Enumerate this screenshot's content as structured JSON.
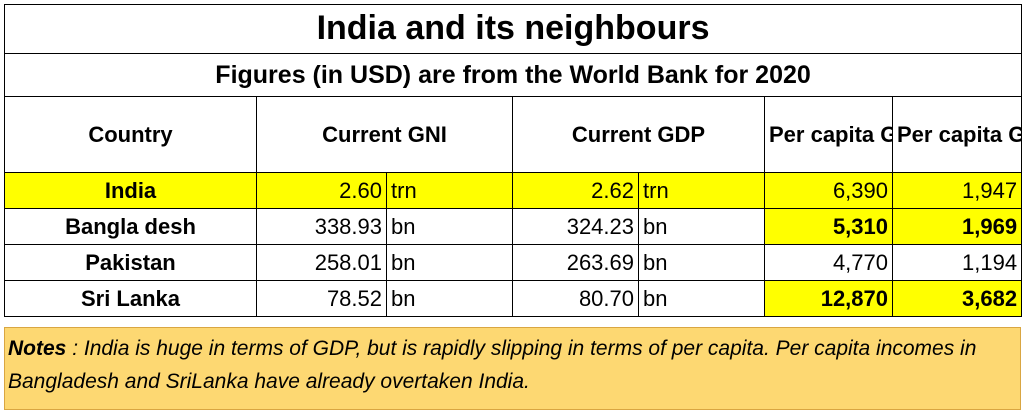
{
  "title": "India and its neighbours",
  "subtitle": "Figures (in USD) are from the World Bank for 2020",
  "headers": {
    "country": "Country",
    "current_gni": "Current GNI",
    "current_gdp": "Current GDP",
    "per_capita_gni_ppp_line1": "Per capita",
    "per_capita_gni_ppp_line2": "GNI - PPP",
    "per_capita_gdp_line1": "Per capita",
    "per_capita_gdp_line2": "GDP"
  },
  "rows": [
    {
      "country": "India",
      "gni": "2.60",
      "gni_unit": "trn",
      "gdp": "2.62",
      "gdp_unit": "trn",
      "pc_gni_ppp": "6,390",
      "pc_gdp": "1,947"
    },
    {
      "country": "Bangla desh",
      "gni": "338.93",
      "gni_unit": "bn",
      "gdp": "324.23",
      "gdp_unit": "bn",
      "pc_gni_ppp": "5,310",
      "pc_gdp": "1,969"
    },
    {
      "country": "Pakistan",
      "gni": "258.01",
      "gni_unit": "bn",
      "gdp": "263.69",
      "gdp_unit": "bn",
      "pc_gni_ppp": "4,770",
      "pc_gdp": "1,194"
    },
    {
      "country": "Sri Lanka",
      "gni": "78.52",
      "gni_unit": "bn",
      "gdp": "80.70",
      "gdp_unit": "bn",
      "pc_gni_ppp": "12,870",
      "pc_gdp": "3,682"
    }
  ],
  "notes": {
    "label": "Notes",
    "text": " : India is huge in terms of GDP, but is rapidly slipping in terms of per capita.  Per capita incomes in Bangladesh and SriLanka have already overtaken India."
  },
  "colors": {
    "highlight": "#ffff00",
    "notes_background": "#fdd872"
  }
}
